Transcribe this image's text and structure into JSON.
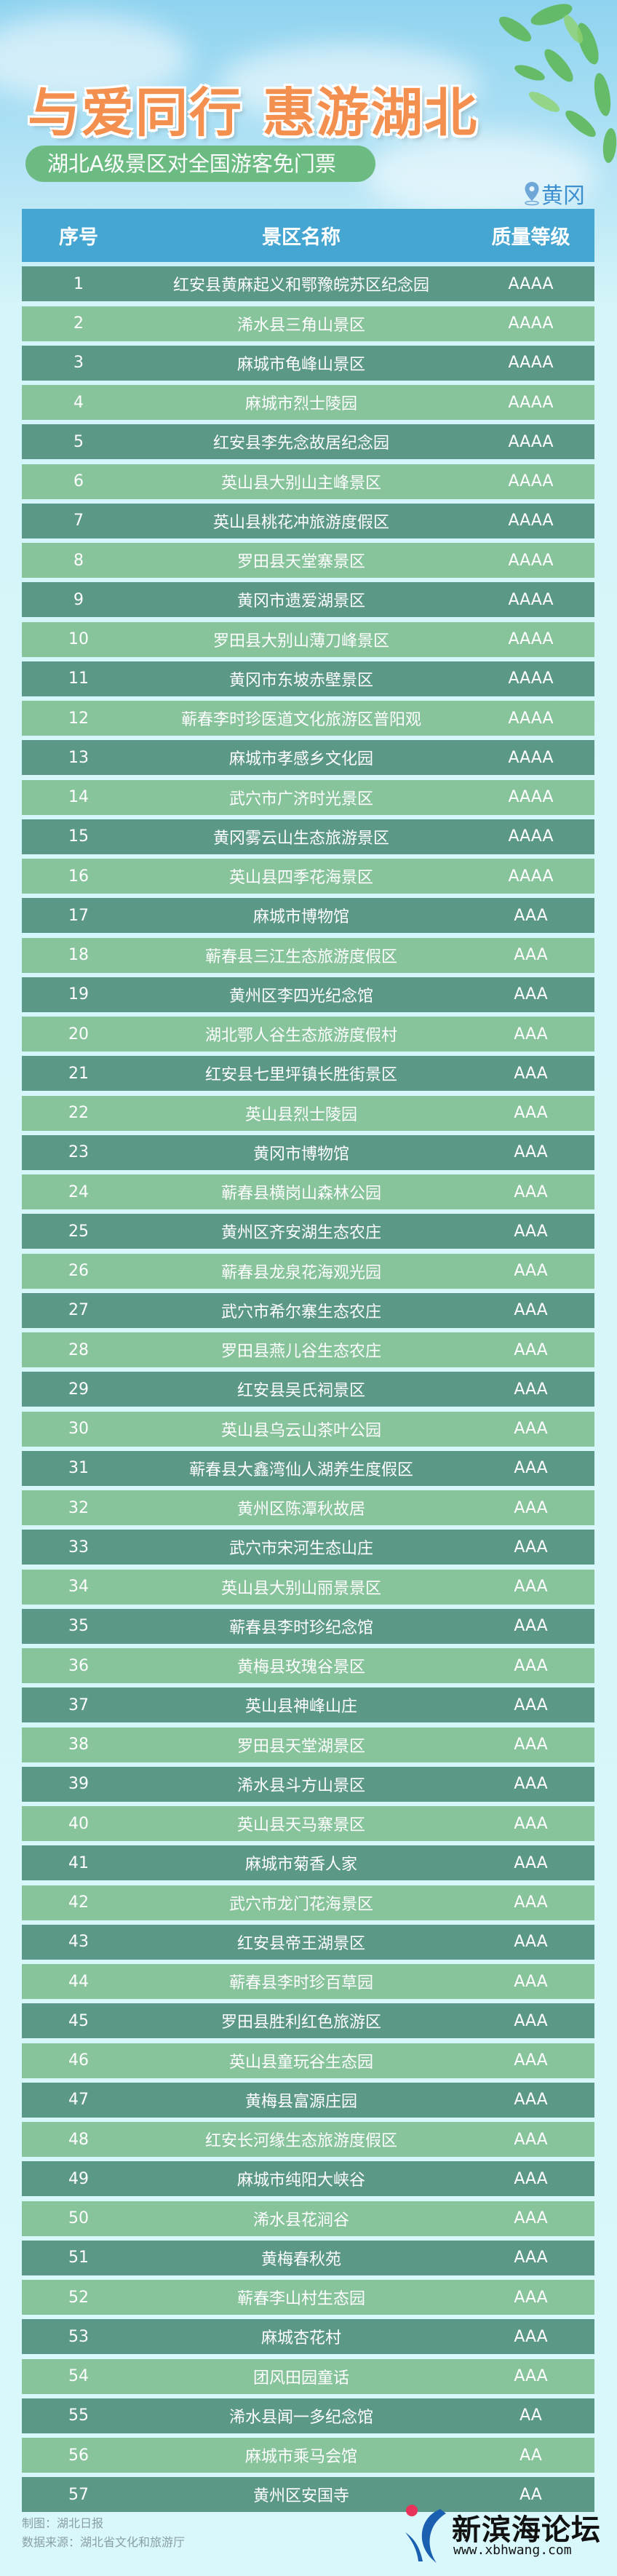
{
  "header": {
    "title": "与爱同行 惠游湖北",
    "subtitle": "湖北A级景区对全国游客免门票",
    "location": "黄冈",
    "location_icon": "map-pin-icon"
  },
  "table": {
    "columns": [
      "序号",
      "景区名称",
      "质量等级"
    ],
    "rows": [
      [
        "1",
        "红安县黄麻起义和鄂豫皖苏区纪念园",
        "AAAA"
      ],
      [
        "2",
        "浠水县三角山景区",
        "AAAA"
      ],
      [
        "3",
        "麻城市龟峰山景区",
        "AAAA"
      ],
      [
        "4",
        "麻城市烈士陵园",
        "AAAA"
      ],
      [
        "5",
        "红安县李先念故居纪念园",
        "AAAA"
      ],
      [
        "6",
        "英山县大别山主峰景区",
        "AAAA"
      ],
      [
        "7",
        "英山县桃花冲旅游度假区",
        "AAAA"
      ],
      [
        "8",
        "罗田县天堂寨景区",
        "AAAA"
      ],
      [
        "9",
        "黄冈市遗爱湖景区",
        "AAAA"
      ],
      [
        "10",
        "罗田县大别山薄刀峰景区",
        "AAAA"
      ],
      [
        "11",
        "黄冈市东坡赤壁景区",
        "AAAA"
      ],
      [
        "12",
        "蕲春李时珍医道文化旅游区普阳观",
        "AAAA"
      ],
      [
        "13",
        "麻城市孝感乡文化园",
        "AAAA"
      ],
      [
        "14",
        "武穴市广济时光景区",
        "AAAA"
      ],
      [
        "15",
        "黄冈雾云山生态旅游景区",
        "AAAA"
      ],
      [
        "16",
        "英山县四季花海景区",
        "AAAA"
      ],
      [
        "17",
        "麻城市博物馆",
        "AAA"
      ],
      [
        "18",
        "蕲春县三江生态旅游度假区",
        "AAA"
      ],
      [
        "19",
        "黄州区李四光纪念馆",
        "AAA"
      ],
      [
        "20",
        "湖北鄂人谷生态旅游度假村",
        "AAA"
      ],
      [
        "21",
        "红安县七里坪镇长胜街景区",
        "AAA"
      ],
      [
        "22",
        "英山县烈士陵园",
        "AAA"
      ],
      [
        "23",
        "黄冈市博物馆",
        "AAA"
      ],
      [
        "24",
        "蕲春县横岗山森林公园",
        "AAA"
      ],
      [
        "25",
        "黄州区齐安湖生态农庄",
        "AAA"
      ],
      [
        "26",
        "蕲春县龙泉花海观光园",
        "AAA"
      ],
      [
        "27",
        "武穴市希尔寨生态农庄",
        "AAA"
      ],
      [
        "28",
        "罗田县燕儿谷生态农庄",
        "AAA"
      ],
      [
        "29",
        "红安县吴氏祠景区",
        "AAA"
      ],
      [
        "30",
        "英山县乌云山茶叶公园",
        "AAA"
      ],
      [
        "31",
        "蕲春县大鑫湾仙人湖养生度假区",
        "AAA"
      ],
      [
        "32",
        "黄州区陈潭秋故居",
        "AAA"
      ],
      [
        "33",
        "武穴市宋河生态山庄",
        "AAA"
      ],
      [
        "34",
        "英山县大别山丽景景区",
        "AAA"
      ],
      [
        "35",
        "蕲春县李时珍纪念馆",
        "AAA"
      ],
      [
        "36",
        "黄梅县玫瑰谷景区",
        "AAA"
      ],
      [
        "37",
        "英山县神峰山庄",
        "AAA"
      ],
      [
        "38",
        "罗田县天堂湖景区",
        "AAA"
      ],
      [
        "39",
        "浠水县斗方山景区",
        "AAA"
      ],
      [
        "40",
        "英山县天马寨景区",
        "AAA"
      ],
      [
        "41",
        "麻城市菊香人家",
        "AAA"
      ],
      [
        "42",
        "武穴市龙门花海景区",
        "AAA"
      ],
      [
        "43",
        "红安县帝王湖景区",
        "AAA"
      ],
      [
        "44",
        "蕲春县李时珍百草园",
        "AAA"
      ],
      [
        "45",
        "罗田县胜利红色旅游区",
        "AAA"
      ],
      [
        "46",
        "英山县童玩谷生态园",
        "AAA"
      ],
      [
        "47",
        "黄梅县富源庄园",
        "AAA"
      ],
      [
        "48",
        "红安长河缘生态旅游度假区",
        "AAA"
      ],
      [
        "49",
        "麻城市纯阳大峡谷",
        "AAA"
      ],
      [
        "50",
        "浠水县花涧谷",
        "AAA"
      ],
      [
        "51",
        "黄梅春秋苑",
        "AAA"
      ],
      [
        "52",
        "蕲春李山村生态园",
        "AAA"
      ],
      [
        "53",
        "麻城杏花村",
        "AAA"
      ],
      [
        "54",
        "团风田园童话",
        "AAA"
      ],
      [
        "55",
        "浠水县闻一多纪念馆",
        "AA"
      ],
      [
        "56",
        "麻城市乘马会馆",
        "AA"
      ],
      [
        "57",
        "黄州区安国寺",
        "AA"
      ]
    ]
  },
  "footer": {
    "credit": "制图：湖北日报",
    "source": "数据来源：湖北省文化和旅游厅"
  },
  "watermark": {
    "name": "新滨海论坛",
    "url": "www.xbhwang.com"
  },
  "colors": {
    "header_bg": "#46a6d2",
    "row_dark": "#5c9887",
    "row_light": "#87c39b",
    "title": "#f39050",
    "pill": "#6cbb82",
    "page_bg": "#d8f8fb"
  }
}
